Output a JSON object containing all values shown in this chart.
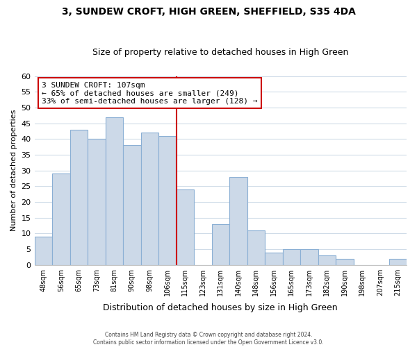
{
  "title": "3, SUNDEW CROFT, HIGH GREEN, SHEFFIELD, S35 4DA",
  "subtitle": "Size of property relative to detached houses in High Green",
  "xlabel": "Distribution of detached houses by size in High Green",
  "ylabel": "Number of detached properties",
  "bin_labels": [
    "48sqm",
    "56sqm",
    "65sqm",
    "73sqm",
    "81sqm",
    "90sqm",
    "98sqm",
    "106sqm",
    "115sqm",
    "123sqm",
    "131sqm",
    "140sqm",
    "148sqm",
    "156sqm",
    "165sqm",
    "173sqm",
    "182sqm",
    "190sqm",
    "198sqm",
    "207sqm",
    "215sqm"
  ],
  "bar_values": [
    9,
    29,
    43,
    40,
    47,
    38,
    42,
    41,
    24,
    0,
    13,
    28,
    11,
    4,
    5,
    5,
    3,
    2,
    0,
    0,
    2
  ],
  "bar_color": "#ccd9e8",
  "bar_edge_color": "#8aafd4",
  "vline_color": "#cc0000",
  "ylim": [
    0,
    60
  ],
  "yticks": [
    0,
    5,
    10,
    15,
    20,
    25,
    30,
    35,
    40,
    45,
    50,
    55,
    60
  ],
  "annotation_line1": "3 SUNDEW CROFT: 107sqm",
  "annotation_line2": "← 65% of detached houses are smaller (249)",
  "annotation_line3": "33% of semi-detached houses are larger (128) →",
  "annotation_box_color": "#ffffff",
  "annotation_box_edge": "#cc0000",
  "footer_text": "Contains HM Land Registry data © Crown copyright and database right 2024.\nContains public sector information licensed under the Open Government Licence v3.0.",
  "background_color": "#ffffff",
  "grid_color": "#d0dce8",
  "vline_bar_index": 7
}
